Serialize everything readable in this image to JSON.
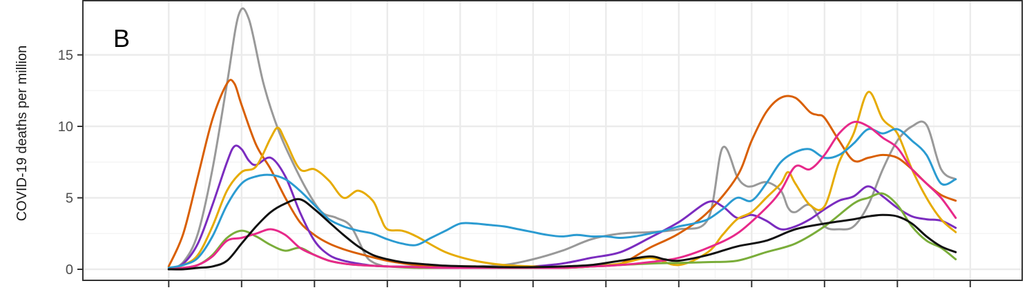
{
  "chart_data": {
    "type": "line",
    "panel_label": "B",
    "ylabel": "COVID-19 deaths per million",
    "xlabel": "",
    "ylim": [
      -0.6,
      18
    ],
    "xlim": [
      0,
      58
    ],
    "y_ticks": [
      0,
      5,
      10,
      15
    ],
    "x_ticks": [
      3,
      8,
      13,
      18,
      23,
      28,
      33,
      38,
      43,
      48,
      53,
      58
    ],
    "x_tick_labels_visible": false,
    "grid": true,
    "colors": {
      "grid": "#ebebeb",
      "panel_border": "#333333"
    },
    "series": [
      {
        "color": "#999999",
        "x": [
          3,
          4,
          5,
          6,
          7,
          7.8,
          8.5,
          9.5,
          10.5,
          11.5,
          12.5,
          13.5,
          14.5,
          15.5,
          16.5,
          17,
          17.5,
          18,
          20,
          22,
          24,
          26,
          28,
          30,
          32,
          34,
          36,
          38,
          40,
          41,
          42,
          42.5,
          43,
          44,
          45,
          45.5,
          46,
          47,
          48,
          49,
          50,
          51,
          52,
          53,
          54,
          55,
          56,
          57
        ],
        "y": [
          0,
          0.5,
          2.5,
          7,
          13,
          17.8,
          17.5,
          13,
          9.8,
          7.5,
          5.5,
          4,
          3.6,
          3,
          1,
          0.5,
          0.3,
          0.2,
          0.2,
          0.2,
          0.2,
          0.3,
          0.7,
          1.3,
          2.1,
          2.5,
          2.6,
          2.8,
          3.5,
          8.5,
          6.5,
          5.9,
          5.8,
          6.1,
          5.5,
          4.3,
          4,
          4.5,
          3,
          2.8,
          3,
          4.5,
          7,
          9,
          10,
          10.1,
          7,
          6.3
        ]
      },
      {
        "color": "#d95f02",
        "x": [
          3,
          4,
          5,
          6,
          7,
          7.5,
          8,
          9,
          10,
          11,
          12,
          13,
          14,
          15,
          16,
          18,
          20,
          22,
          24,
          26,
          28,
          30,
          32,
          34,
          36,
          38,
          40,
          42,
          43,
          44,
          45,
          46,
          47,
          47.5,
          48,
          49,
          50,
          51,
          52,
          53,
          54,
          55,
          56,
          57
        ],
        "y": [
          0.2,
          2.5,
          6.5,
          10.5,
          13,
          13,
          11.5,
          8.7,
          7,
          5,
          3.3,
          2.4,
          1.8,
          1.4,
          1.1,
          0.6,
          0.3,
          0.2,
          0.2,
          0.1,
          0.1,
          0.1,
          0.2,
          0.4,
          1.5,
          2.5,
          4,
          6.5,
          9,
          11,
          12,
          12,
          11,
          10.8,
          10.6,
          9,
          7.6,
          7.8,
          8,
          7.8,
          7,
          6,
          5.2,
          4.8
        ]
      },
      {
        "color": "#7b2cbf",
        "x": [
          3,
          4,
          5,
          6,
          7,
          7.5,
          8,
          8.5,
          9,
          10,
          11,
          12,
          13,
          14,
          15,
          16,
          17,
          18,
          20,
          22,
          24,
          26,
          28,
          30,
          32,
          34,
          36,
          38,
          40,
          41,
          42,
          43,
          44,
          45,
          46,
          47,
          48,
          49,
          50,
          51,
          52,
          53,
          54,
          55,
          56,
          57
        ],
        "y": [
          0,
          0.4,
          1.8,
          4.5,
          7.5,
          8.6,
          8.4,
          7.6,
          7.3,
          7.8,
          6.5,
          4,
          2,
          1,
          0.6,
          0.4,
          0.25,
          0.2,
          0.15,
          0.1,
          0.1,
          0.1,
          0.2,
          0.4,
          0.8,
          1.2,
          2.2,
          3.3,
          4.7,
          4.4,
          3.6,
          3.8,
          3.4,
          2.8,
          3,
          3.5,
          4.2,
          4.8,
          5.1,
          5.8,
          5.1,
          4.3,
          3.7,
          3.5,
          3.4,
          2.9
        ]
      },
      {
        "color": "#e6ab02",
        "x": [
          3,
          4,
          5,
          6,
          7,
          8,
          9,
          10,
          10.5,
          11,
          12,
          13,
          14,
          15,
          16,
          17,
          17.5,
          18,
          19,
          20,
          22,
          24,
          26,
          28,
          30,
          32,
          34,
          36,
          38,
          40,
          41,
          42,
          43,
          44,
          45,
          45.5,
          46,
          47,
          48,
          49,
          50,
          51,
          52,
          53,
          54,
          55,
          56,
          57
        ],
        "y": [
          0.1,
          0.3,
          1,
          3,
          5.5,
          6.8,
          7.2,
          9.2,
          9.9,
          9,
          7,
          7,
          6.2,
          5,
          5.5,
          4.8,
          3.7,
          2.8,
          2.7,
          2.3,
          1.2,
          0.6,
          0.3,
          0.2,
          0.1,
          0.2,
          0.4,
          0.8,
          0.3,
          1.2,
          2.4,
          3.5,
          4,
          5,
          6,
          6.8,
          6,
          4.5,
          4.4,
          7.5,
          9.5,
          12.4,
          10.5,
          9.5,
          7,
          5,
          3.5,
          2.6
        ]
      },
      {
        "color": "#2b9bd1",
        "x": [
          3,
          4,
          5,
          6,
          7,
          8,
          9,
          10,
          11,
          12,
          13,
          14,
          15,
          16,
          17,
          18,
          19,
          20,
          21,
          22,
          23,
          24,
          25,
          26,
          27,
          28,
          29,
          30,
          31,
          32,
          33,
          34,
          35,
          36,
          37,
          38,
          39,
          40,
          41,
          42,
          43,
          44,
          45,
          46,
          47,
          48,
          49,
          50,
          51,
          52,
          53,
          54,
          55,
          56,
          57
        ],
        "y": [
          0.1,
          0.3,
          0.8,
          2.3,
          4.5,
          6,
          6.5,
          6.6,
          6.3,
          5.5,
          4.5,
          3.5,
          3,
          2.7,
          2.5,
          2.1,
          1.8,
          1.7,
          2.2,
          2.7,
          3.2,
          3.2,
          3.1,
          3,
          2.8,
          2.6,
          2.4,
          2.3,
          2.4,
          2.3,
          2.3,
          2.2,
          2.3,
          2.5,
          2.7,
          3,
          3.2,
          3.5,
          4.2,
          5,
          4.8,
          6,
          7.5,
          8.2,
          8.4,
          7.8,
          8,
          8.8,
          9.8,
          9.5,
          9.8,
          9,
          8,
          6,
          6.3
        ]
      },
      {
        "color": "#7aad3a",
        "x": [
          3,
          4,
          5,
          6,
          7,
          8,
          9,
          10,
          11,
          12,
          13,
          14,
          15,
          16,
          18,
          20,
          22,
          24,
          26,
          28,
          30,
          32,
          34,
          36,
          38,
          40,
          42,
          44,
          46,
          48,
          50,
          51,
          52,
          53,
          54,
          55,
          56,
          57
        ],
        "y": [
          0,
          0.1,
          0.3,
          1,
          2.2,
          2.7,
          2.3,
          1.7,
          1.3,
          1.5,
          1,
          0.6,
          0.4,
          0.3,
          0.2,
          0.1,
          0.1,
          0.1,
          0.1,
          0.1,
          0.1,
          0.2,
          0.3,
          0.4,
          0.45,
          0.5,
          0.6,
          1.2,
          1.8,
          3,
          4.6,
          5,
          5.3,
          4.5,
          3,
          2,
          1.5,
          0.7
        ]
      },
      {
        "color": "#e7298a",
        "x": [
          3,
          4,
          5,
          6,
          7,
          8,
          9,
          10,
          11,
          12,
          13,
          14,
          15,
          16,
          18,
          20,
          22,
          24,
          26,
          28,
          30,
          32,
          34,
          36,
          38,
          40,
          42,
          44,
          45,
          46,
          47,
          48,
          49,
          50,
          51,
          52,
          53,
          54,
          55,
          56,
          57
        ],
        "y": [
          0,
          0.1,
          0.3,
          0.9,
          2,
          2.2,
          2.5,
          2.8,
          2.4,
          1.5,
          1,
          0.6,
          0.4,
          0.3,
          0.2,
          0.15,
          0.1,
          0.1,
          0.1,
          0.1,
          0.1,
          0.2,
          0.3,
          0.5,
          0.8,
          1.5,
          2.5,
          4.3,
          5.5,
          7.2,
          7,
          8,
          9.5,
          10.3,
          10,
          9.2,
          8.5,
          7,
          6,
          5,
          3.6
        ]
      },
      {
        "color": "#111111",
        "x": [
          3,
          4,
          5,
          6,
          7,
          8,
          9,
          10,
          11,
          12,
          13,
          14,
          15,
          16,
          17,
          18,
          19,
          20,
          22,
          24,
          26,
          28,
          30,
          32,
          34,
          36,
          37,
          38,
          40,
          42,
          44,
          46,
          48,
          50,
          51,
          52,
          53,
          54,
          55,
          56,
          57
        ],
        "y": [
          0,
          0,
          0.1,
          0.2,
          0.6,
          1.8,
          3,
          4,
          4.6,
          4.9,
          4.2,
          3.3,
          2.4,
          1.6,
          1,
          0.7,
          0.5,
          0.4,
          0.25,
          0.2,
          0.15,
          0.15,
          0.2,
          0.3,
          0.6,
          0.9,
          0.7,
          0.6,
          1,
          1.6,
          2,
          2.8,
          3.2,
          3.5,
          3.7,
          3.8,
          3.7,
          3.2,
          2.3,
          1.6,
          1.2
        ]
      }
    ]
  }
}
